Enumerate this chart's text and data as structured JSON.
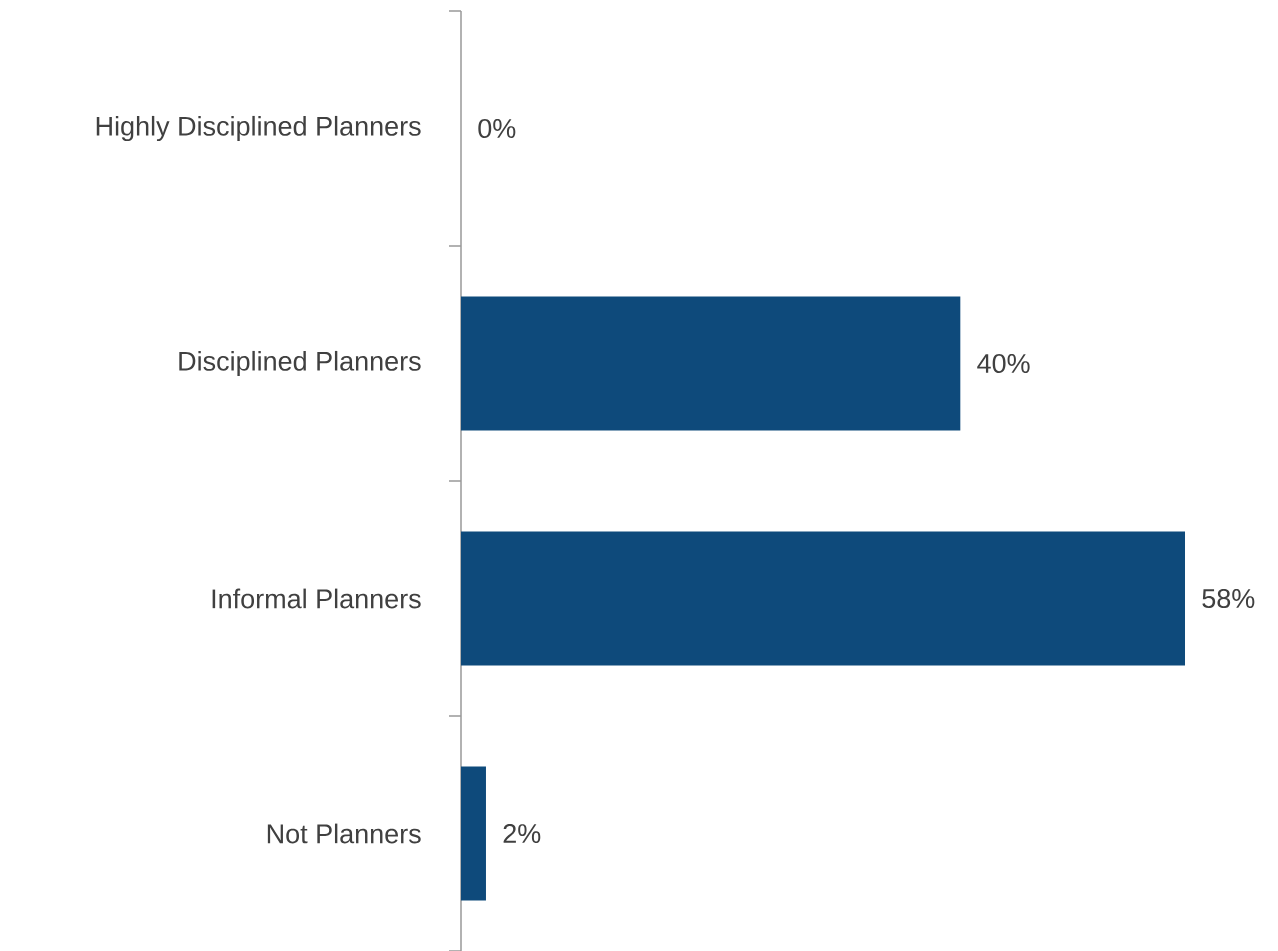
{
  "chart_data": {
    "type": "bar",
    "orientation": "horizontal",
    "categories": [
      "Highly Disciplined Planners",
      "Disciplined Planners",
      "Informal Planners",
      "Not Planners"
    ],
    "values": [
      0,
      40,
      58,
      2
    ],
    "value_labels": [
      "0%",
      "40%",
      "58%",
      "2%"
    ],
    "color": "#0e4a7b"
  }
}
